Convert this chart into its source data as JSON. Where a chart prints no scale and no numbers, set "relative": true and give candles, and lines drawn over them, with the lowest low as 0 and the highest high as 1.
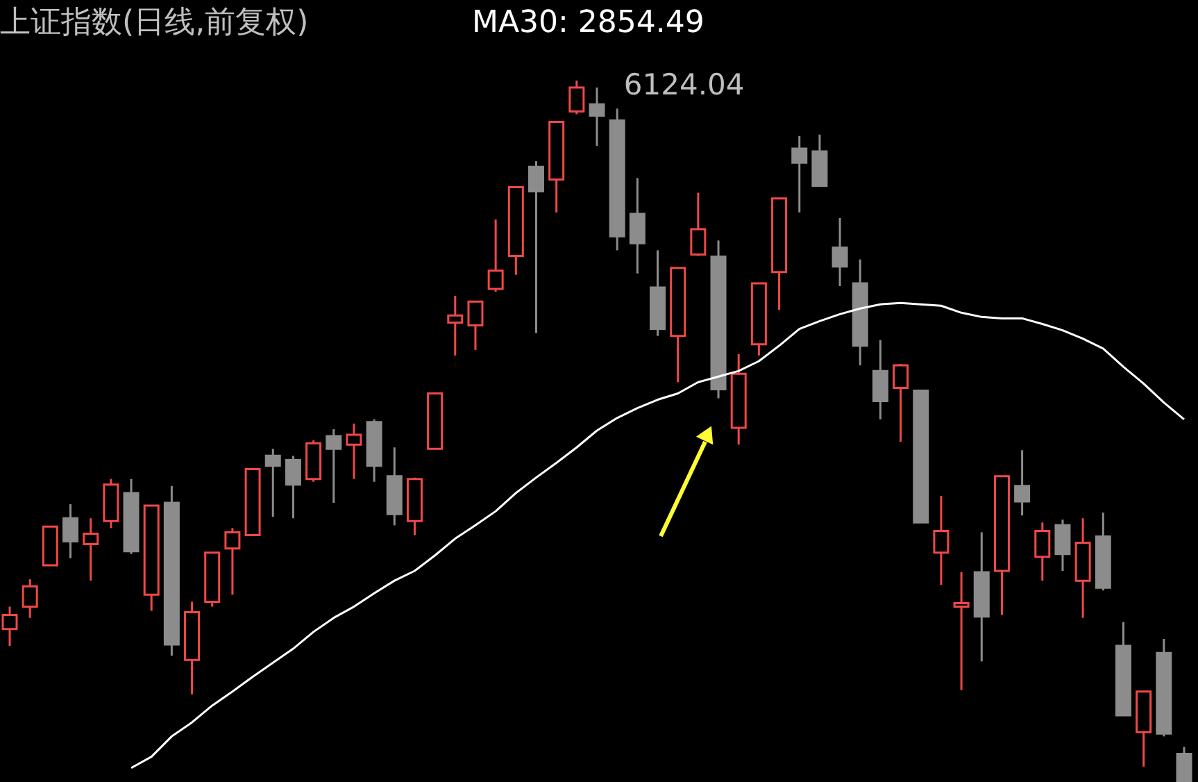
{
  "chart_data": {
    "type": "candlestick",
    "title": "上证指数(日线,前复权)",
    "relative": true,
    "tick_labels": false,
    "grid": false,
    "legend": "top left",
    "categories": [
      null,
      null,
      null,
      null,
      null,
      null,
      null,
      null,
      null,
      null,
      null,
      null,
      null,
      null,
      null,
      null,
      null,
      null,
      null,
      null,
      null,
      null,
      null,
      null,
      null,
      null,
      null,
      null,
      null,
      null,
      null,
      null,
      null,
      null,
      null,
      null,
      null,
      null,
      null,
      null,
      null,
      null,
      null,
      null,
      null,
      null,
      null,
      null,
      null,
      null,
      null,
      null,
      null,
      null,
      null,
      null,
      null,
      null,
      null
    ],
    "ohlc": [
      [
        0.218,
        0.25,
        0.194,
        0.238
      ],
      [
        0.25,
        0.289,
        0.234,
        0.279
      ],
      [
        0.309,
        0.364,
        0.309,
        0.364
      ],
      [
        0.376,
        0.396,
        0.319,
        0.343
      ],
      [
        0.339,
        0.376,
        0.287,
        0.354
      ],
      [
        0.372,
        0.432,
        0.362,
        0.424
      ],
      [
        0.412,
        0.432,
        0.325,
        0.329
      ],
      [
        0.267,
        0.394,
        0.244,
        0.394
      ],
      [
        0.398,
        0.422,
        0.18,
        0.196
      ],
      [
        0.174,
        0.257,
        0.125,
        0.242
      ],
      [
        0.257,
        0.327,
        0.25,
        0.327
      ],
      [
        0.333,
        0.362,
        0.267,
        0.356
      ],
      [
        0.352,
        0.446,
        0.352,
        0.446
      ],
      [
        0.465,
        0.475,
        0.378,
        0.451
      ],
      [
        0.459,
        0.465,
        0.376,
        0.424
      ],
      [
        0.432,
        0.487,
        0.428,
        0.483
      ],
      [
        0.493,
        0.503,
        0.398,
        0.475
      ],
      [
        0.481,
        0.511,
        0.432,
        0.495
      ],
      [
        0.513,
        0.517,
        0.428,
        0.451
      ],
      [
        0.436,
        0.477,
        0.366,
        0.382
      ],
      [
        0.372,
        0.434,
        0.352,
        0.432
      ],
      [
        0.475,
        0.554,
        0.475,
        0.554
      ],
      [
        0.655,
        0.693,
        0.608,
        0.665
      ],
      [
        0.651,
        0.685,
        0.616,
        0.685
      ],
      [
        0.703,
        0.802,
        0.699,
        0.729
      ],
      [
        0.75,
        0.848,
        0.723,
        0.848
      ],
      [
        0.877,
        0.885,
        0.64,
        0.842
      ],
      [
        0.859,
        0.941,
        0.812,
        0.941
      ],
      [
        0.956,
        1,
        0.952,
        0.99
      ],
      [
        0.966,
        0.99,
        0.907,
        0.95
      ],
      [
        0.943,
        0.96,
        0.758,
        0.778
      ],
      [
        0.81,
        0.861,
        0.725,
        0.768
      ],
      [
        0.705,
        0.758,
        0.636,
        0.646
      ],
      [
        0.636,
        0.733,
        0.57,
        0.733
      ],
      [
        0.752,
        0.84,
        0.75,
        0.788
      ],
      [
        0.749,
        0.772,
        0.547,
        0.56
      ],
      [
        0.505,
        0.61,
        0.481,
        0.582
      ],
      [
        0.624,
        0.711,
        0.608,
        0.711
      ],
      [
        0.727,
        0.832,
        0.673,
        0.832
      ],
      [
        0.903,
        0.921,
        0.812,
        0.883
      ],
      [
        0.899,
        0.923,
        0.85,
        0.85
      ],
      [
        0.762,
        0.804,
        0.707,
        0.735
      ],
      [
        0.711,
        0.745,
        0.594,
        0.622
      ],
      [
        0.586,
        0.63,
        0.517,
        0.543
      ],
      [
        0.562,
        0.596,
        0.485,
        0.594
      ],
      [
        0.558,
        0.558,
        0.37,
        0.37
      ],
      [
        0.327,
        0.408,
        0.281,
        0.358
      ],
      [
        0.25,
        0.299,
        0.131,
        0.255
      ],
      [
        0.299,
        0.356,
        0.172,
        0.236
      ],
      [
        0.301,
        0.436,
        0.238,
        0.436
      ],
      [
        0.422,
        0.473,
        0.38,
        0.4
      ],
      [
        0.321,
        0.37,
        0.287,
        0.358
      ],
      [
        0.366,
        0.374,
        0.301,
        0.325
      ],
      [
        0.287,
        0.376,
        0.234,
        0.341
      ],
      [
        0.35,
        0.384,
        0.273,
        0.277
      ],
      [
        0.194,
        0.228,
        0.095,
        0.095
      ],
      [
        0.071,
        0.129,
        0.022,
        0.129
      ],
      [
        0.184,
        0.204,
        0.065,
        0.069
      ],
      [
        0.04,
        0.05,
        0,
        0
      ]
    ],
    "colors": [
      "#f04848",
      "#f04848",
      "#f04848",
      "#8c8c8c",
      "#f04848",
      "#f04848",
      "#8c8c8c",
      "#f04848",
      "#8c8c8c",
      "#f04848",
      "#f04848",
      "#f04848",
      "#f04848",
      "#8c8c8c",
      "#8c8c8c",
      "#f04848",
      "#8c8c8c",
      "#f04848",
      "#8c8c8c",
      "#8c8c8c",
      "#f04848",
      "#f04848",
      "#f04848",
      "#f04848",
      "#f04848",
      "#f04848",
      "#8c8c8c",
      "#f04848",
      "#f04848",
      "#8c8c8c",
      "#8c8c8c",
      "#8c8c8c",
      "#8c8c8c",
      "#f04848",
      "#f04848",
      "#8c8c8c",
      "#f04848",
      "#f04848",
      "#f04848",
      "#8c8c8c",
      "#8c8c8c",
      "#8c8c8c",
      "#8c8c8c",
      "#8c8c8c",
      "#f04848",
      "#8c8c8c",
      "#f04848",
      "#f04848",
      "#8c8c8c",
      "#f04848",
      "#8c8c8c",
      "#f04848",
      "#8c8c8c",
      "#f04848",
      "#8c8c8c",
      "#8c8c8c",
      "#f04848",
      "#8c8c8c",
      "#8c8c8c"
    ],
    "series": [
      {
        "name": "MA30: 2854.49",
        "type": "line",
        "color": "#ffffff",
        "values": [
          null,
          null,
          null,
          null,
          null,
          null,
          0.02,
          0.036,
          0.065,
          0.085,
          0.109,
          0.129,
          0.15,
          0.17,
          0.19,
          0.214,
          0.234,
          0.25,
          0.269,
          0.287,
          0.301,
          0.323,
          0.347,
          0.366,
          0.386,
          0.412,
          0.434,
          0.455,
          0.477,
          0.501,
          0.519,
          0.533,
          0.545,
          0.554,
          0.57,
          0.578,
          0.586,
          0.6,
          0.622,
          0.646,
          0.657,
          0.667,
          0.675,
          0.681,
          0.683,
          0.681,
          0.679,
          0.669,
          0.663,
          0.661,
          0.661,
          0.653,
          0.644,
          0.632,
          0.618,
          0.592,
          0.568,
          0.541,
          0.517
        ]
      }
    ],
    "annotations": [
      "6124.04"
    ]
  }
}
